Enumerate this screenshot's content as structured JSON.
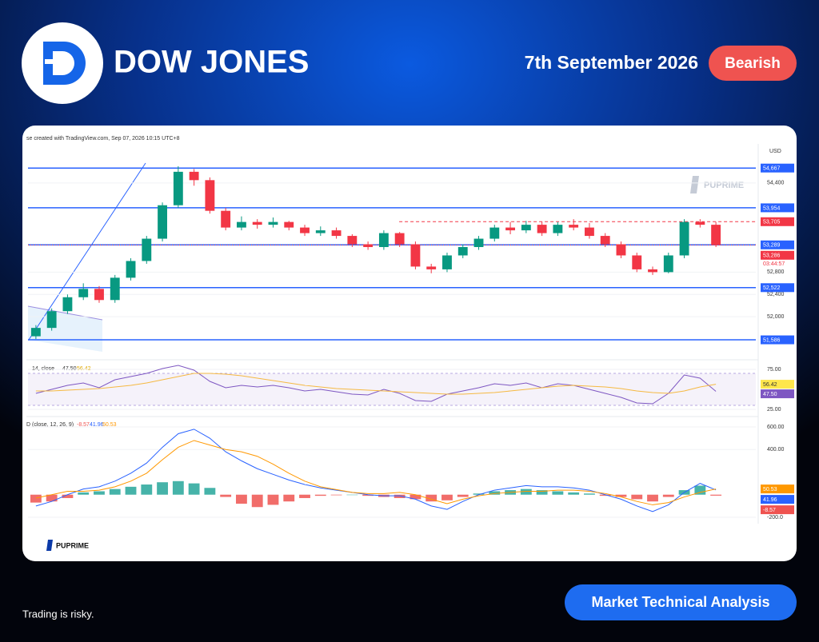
{
  "header": {
    "title": "DOW JONES",
    "date": "7th September 2026",
    "sentiment": "Bearish"
  },
  "brand": {
    "watermark": "PUPRIME",
    "footer_logo": "PUPRIME"
  },
  "footer": {
    "disclaimer": "Trading is risky.",
    "button": "Market Technical Analysis"
  },
  "chart_data": {
    "type": "candlestick",
    "attribution": "se created with TradingView.com, Sep 07, 2026 10:15 UTC+8",
    "currency": "USD",
    "open": [
      51650,
      51800,
      52100,
      52350,
      52500,
      52300,
      52700,
      53000,
      53400,
      54000,
      54600,
      54450,
      53900,
      53600,
      53700,
      53650,
      53700,
      53600,
      53500,
      53550,
      53450,
      53300,
      53250,
      53500,
      53300,
      52900,
      52850,
      53100,
      53250,
      53400,
      53600,
      53550,
      53650,
      53500,
      53650,
      53600,
      53450,
      53300,
      53100,
      52850,
      52800,
      53100,
      53700,
      53650
    ],
    "high": [
      51850,
      52150,
      52400,
      52600,
      52550,
      52750,
      53050,
      53450,
      54050,
      54700,
      54650,
      54500,
      53950,
      53800,
      53750,
      53780,
      53720,
      53650,
      53620,
      53600,
      53480,
      53350,
      53550,
      53520,
      53350,
      52950,
      53150,
      53300,
      53450,
      53650,
      53700,
      53720,
      53700,
      53700,
      53750,
      53680,
      53500,
      53350,
      53150,
      52900,
      53150,
      53750,
      53750,
      53700
    ],
    "low": [
      51600,
      51750,
      52050,
      52300,
      52250,
      52250,
      52650,
      52950,
      53350,
      53950,
      54350,
      53850,
      53550,
      53550,
      53580,
      53600,
      53550,
      53450,
      53450,
      53400,
      53250,
      53200,
      53200,
      53250,
      52850,
      52780,
      52800,
      53050,
      53200,
      53350,
      53480,
      53500,
      53450,
      53450,
      53550,
      53400,
      53250,
      53050,
      52800,
      52750,
      52780,
      53050,
      53600,
      53250
    ],
    "close": [
      51800,
      52100,
      52350,
      52500,
      52300,
      52700,
      53000,
      53400,
      54000,
      54600,
      54450,
      53900,
      53600,
      53700,
      53650,
      53700,
      53600,
      53500,
      53550,
      53450,
      53300,
      53250,
      53500,
      53300,
      52900,
      52850,
      53100,
      53250,
      53400,
      53600,
      53550,
      53650,
      53500,
      53650,
      53600,
      53450,
      53300,
      53100,
      52850,
      52800,
      53100,
      53700,
      53650,
      53286
    ],
    "up_color": "#089981",
    "down_color": "#f23645",
    "ylim": [
      51300,
      55100
    ],
    "yticks": [
      {
        "value": 52000,
        "label": "52,000"
      },
      {
        "value": 52400,
        "label": "52,400"
      },
      {
        "value": 52800,
        "label": "52,800"
      },
      {
        "value": 54400,
        "label": "54,400"
      }
    ],
    "levels": [
      {
        "value": 54667,
        "label": "54,667",
        "color": "#2962ff"
      },
      {
        "value": 53954,
        "label": "53,954",
        "color": "#2962ff"
      },
      {
        "value": 53705,
        "label": "53,705",
        "color": "#f23645",
        "dashed": true
      },
      {
        "value": 53289,
        "label": "53,289",
        "color": "#2962ff"
      },
      {
        "value": 52522,
        "label": "52,522",
        "color": "#2962ff"
      },
      {
        "value": 51586,
        "label": "51,586",
        "color": "#2962ff"
      }
    ],
    "last_price": {
      "value": 53286,
      "label": "53,286",
      "countdown": "03:44:57",
      "color": "#f23645"
    },
    "rsi": {
      "title": "14, close",
      "series": [
        {
          "color": "#7e57c2",
          "values": [
            45,
            50,
            55,
            58,
            52,
            62,
            66,
            70,
            76,
            80,
            74,
            60,
            52,
            55,
            53,
            55,
            52,
            48,
            50,
            47,
            44,
            43,
            50,
            45,
            36,
            35,
            44,
            48,
            52,
            57,
            55,
            58,
            52,
            57,
            55,
            50,
            45,
            40,
            33,
            32,
            45,
            68,
            64,
            47.5
          ]
        },
        {
          "color": "#f5b942",
          "values": [
            48,
            48,
            49,
            50,
            51,
            53,
            55,
            58,
            62,
            66,
            70,
            70,
            69,
            67,
            64,
            61,
            58,
            55,
            53,
            51,
            50,
            49,
            48,
            47,
            46,
            45,
            44,
            44,
            45,
            46,
            48,
            50,
            52,
            54,
            55,
            54,
            53,
            51,
            48,
            46,
            45,
            48,
            53,
            56.42
          ]
        }
      ],
      "ylim": [
        20,
        82
      ],
      "yticks": [
        {
          "value": 75,
          "label": "75.00"
        },
        {
          "value": 25,
          "label": "25.00"
        }
      ],
      "band": [
        30,
        70
      ],
      "last_labels": [
        {
          "value": 47.5,
          "label": "47.50",
          "color": "#7e57c2"
        },
        {
          "value": 56.42,
          "label": "56.42",
          "color": "#ffe74c"
        }
      ]
    },
    "macd": {
      "title": "D (close, 12, 26, 9)",
      "histogram": {
        "values": [
          -70,
          -60,
          -30,
          20,
          30,
          50,
          70,
          90,
          110,
          120,
          100,
          60,
          -20,
          -80,
          -110,
          -90,
          -60,
          -30,
          -10,
          -5,
          0,
          -10,
          -20,
          -30,
          -40,
          -60,
          -50,
          -20,
          10,
          30,
          40,
          50,
          40,
          30,
          20,
          10,
          -10,
          -20,
          -40,
          -60,
          -20,
          40,
          80,
          -8.57
        ],
        "up_color": "#26a69a",
        "down_color": "#ef5350"
      },
      "series": [
        {
          "color": "#2962ff",
          "values": [
            -100,
            -60,
            0,
            50,
            70,
            120,
            190,
            280,
            420,
            540,
            580,
            500,
            380,
            300,
            230,
            180,
            130,
            90,
            60,
            40,
            20,
            0,
            -10,
            -10,
            -40,
            -100,
            -130,
            -60,
            0,
            40,
            60,
            80,
            70,
            70,
            60,
            40,
            0,
            -40,
            -100,
            -150,
            -90,
            20,
            100,
            41.96
          ]
        },
        {
          "color": "#ff9800",
          "values": [
            -30,
            0,
            30,
            30,
            40,
            70,
            120,
            190,
            310,
            420,
            480,
            440,
            400,
            380,
            340,
            270,
            190,
            120,
            70,
            45,
            20,
            10,
            10,
            20,
            0,
            -40,
            -80,
            -40,
            -10,
            10,
            20,
            30,
            30,
            40,
            40,
            30,
            10,
            -20,
            -60,
            -90,
            -70,
            -20,
            20,
            50.53
          ]
        }
      ],
      "ylim": [
        -257,
        664
      ],
      "yticks": [
        {
          "value": 600,
          "label": "600.00"
        },
        {
          "value": 400,
          "label": "400.00"
        },
        {
          "value": -200,
          "label": "-200.0"
        }
      ],
      "last_labels": [
        {
          "value": -8.57,
          "label": "-8.57",
          "color": "#ef5350"
        },
        {
          "value": 41.96,
          "label": "41.96",
          "color": "#2962ff"
        },
        {
          "value": 50.53,
          "label": "50.53",
          "color": "#ff9800"
        }
      ]
    }
  }
}
